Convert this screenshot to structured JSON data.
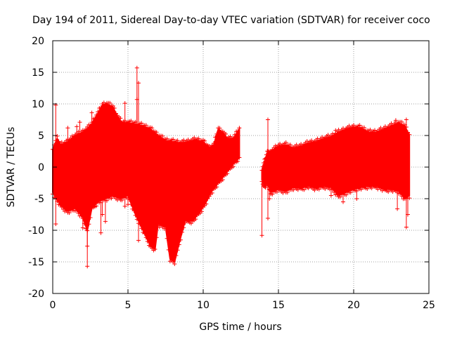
{
  "chart_data": {
    "type": "scatter",
    "title": "Day 194 of 2011, Sidereal Day-to-day VTEC variation (SDTVAR) for receiver coco",
    "xlabel": "GPS time / hours",
    "ylabel": "SDTVAR / TECUs",
    "xlim": [
      0,
      25
    ],
    "ylim": [
      -20,
      20
    ],
    "x_ticks": [
      0,
      5,
      10,
      15,
      20,
      25
    ],
    "y_ticks": [
      -20,
      -15,
      -10,
      -5,
      0,
      5,
      10,
      15,
      20
    ],
    "x_tick_labels": [
      "0",
      "5",
      "10",
      "15",
      "20",
      "25"
    ],
    "y_tick_labels": [
      "-20",
      "-15",
      "-10",
      "-5",
      "0",
      "5",
      "10",
      "15",
      "20"
    ],
    "grid": true,
    "marker": "+",
    "series_color": "#ff0000",
    "segments": [
      {
        "name": "segment-1",
        "x_range": [
          0.0,
          12.4
        ],
        "upper_envelope": [
          [
            0.0,
            2.8
          ],
          [
            0.3,
            4.5
          ],
          [
            0.5,
            3.5
          ],
          [
            1.0,
            4.0
          ],
          [
            1.5,
            5.0
          ],
          [
            2.0,
            5.5
          ],
          [
            2.5,
            6.5
          ],
          [
            3.0,
            8.5
          ],
          [
            3.3,
            9.8
          ],
          [
            3.6,
            10.0
          ],
          [
            4.0,
            9.5
          ],
          [
            4.3,
            8.0
          ],
          [
            4.6,
            7.0
          ],
          [
            5.0,
            7.0
          ],
          [
            5.5,
            6.8
          ],
          [
            6.0,
            6.5
          ],
          [
            6.5,
            6.0
          ],
          [
            7.0,
            5.0
          ],
          [
            7.5,
            4.2
          ],
          [
            8.0,
            4.0
          ],
          [
            8.5,
            3.8
          ],
          [
            9.0,
            4.0
          ],
          [
            9.5,
            4.3
          ],
          [
            10.0,
            4.0
          ],
          [
            10.4,
            3.0
          ],
          [
            10.7,
            3.5
          ],
          [
            11.0,
            6.0
          ],
          [
            11.3,
            5.5
          ],
          [
            11.6,
            4.5
          ],
          [
            12.0,
            4.5
          ],
          [
            12.4,
            6.0
          ]
        ],
        "lower_envelope": [
          [
            0.0,
            -4.0
          ],
          [
            0.5,
            -6.0
          ],
          [
            1.0,
            -7.0
          ],
          [
            1.5,
            -6.5
          ],
          [
            2.0,
            -8.0
          ],
          [
            2.3,
            -10.0
          ],
          [
            2.6,
            -6.5
          ],
          [
            3.0,
            -5.5
          ],
          [
            3.5,
            -5.0
          ],
          [
            4.0,
            -4.5
          ],
          [
            4.5,
            -5.0
          ],
          [
            5.0,
            -4.5
          ],
          [
            5.5,
            -7.5
          ],
          [
            6.0,
            -10.0
          ],
          [
            6.5,
            -12.5
          ],
          [
            6.8,
            -13.0
          ],
          [
            7.0,
            -9.0
          ],
          [
            7.5,
            -9.5
          ],
          [
            7.8,
            -14.5
          ],
          [
            8.1,
            -15.0
          ],
          [
            8.4,
            -12.0
          ],
          [
            8.8,
            -8.5
          ],
          [
            9.3,
            -8.5
          ],
          [
            9.8,
            -7.0
          ],
          [
            10.2,
            -5.5
          ],
          [
            10.5,
            -4.0
          ],
          [
            11.0,
            -2.5
          ],
          [
            11.5,
            -1.0
          ],
          [
            12.0,
            0.5
          ],
          [
            12.4,
            1.5
          ]
        ],
        "outliers": [
          [
            0.2,
            9.8
          ],
          [
            0.2,
            -9.0
          ],
          [
            1.0,
            6.2
          ],
          [
            1.6,
            6.4
          ],
          [
            1.8,
            7.1
          ],
          [
            2.3,
            -15.7
          ],
          [
            2.3,
            -12.5
          ],
          [
            2.6,
            8.6
          ],
          [
            3.2,
            -10.4
          ],
          [
            3.3,
            -7.5
          ],
          [
            3.5,
            -8.6
          ],
          [
            4.8,
            10.1
          ],
          [
            4.8,
            -6.2
          ],
          [
            5.0,
            -5.9
          ],
          [
            5.6,
            15.7
          ],
          [
            5.6,
            10.7
          ],
          [
            5.7,
            13.3
          ],
          [
            5.7,
            -11.6
          ],
          [
            2.0,
            -9.6
          ],
          [
            10.8,
            -2.6
          ]
        ]
      },
      {
        "name": "segment-2",
        "x_range": [
          13.9,
          14.5
        ],
        "upper_envelope": [
          [
            13.9,
            -0.5
          ],
          [
            14.1,
            1.0
          ],
          [
            14.3,
            2.5
          ],
          [
            14.5,
            2.0
          ]
        ],
        "lower_envelope": [
          [
            13.9,
            -2.0
          ],
          [
            14.1,
            -3.0
          ],
          [
            14.3,
            -2.5
          ],
          [
            14.5,
            -4.0
          ]
        ],
        "outliers": [
          [
            13.9,
            -10.8
          ],
          [
            14.0,
            -3.0
          ],
          [
            14.1,
            -2.6
          ],
          [
            14.3,
            -8.1
          ],
          [
            14.3,
            7.5
          ],
          [
            14.4,
            -5.0
          ]
        ]
      },
      {
        "name": "segment-3",
        "x_range": [
          14.5,
          23.7
        ],
        "upper_envelope": [
          [
            14.5,
            2.5
          ],
          [
            15.0,
            3.3
          ],
          [
            15.5,
            3.5
          ],
          [
            16.0,
            3.0
          ],
          [
            16.5,
            3.3
          ],
          [
            17.0,
            3.8
          ],
          [
            17.5,
            4.0
          ],
          [
            18.0,
            4.5
          ],
          [
            18.5,
            4.8
          ],
          [
            19.0,
            5.5
          ],
          [
            19.5,
            6.0
          ],
          [
            20.0,
            6.3
          ],
          [
            20.5,
            6.2
          ],
          [
            21.0,
            5.5
          ],
          [
            21.5,
            5.5
          ],
          [
            22.0,
            6.0
          ],
          [
            22.5,
            6.5
          ],
          [
            23.0,
            7.0
          ],
          [
            23.4,
            6.5
          ],
          [
            23.7,
            5.0
          ]
        ],
        "lower_envelope": [
          [
            14.5,
            -4.0
          ],
          [
            15.0,
            -3.5
          ],
          [
            15.5,
            -3.8
          ],
          [
            16.0,
            -3.2
          ],
          [
            16.5,
            -3.3
          ],
          [
            17.0,
            -3.0
          ],
          [
            17.5,
            -3.3
          ],
          [
            18.0,
            -3.0
          ],
          [
            18.5,
            -3.2
          ],
          [
            19.0,
            -4.5
          ],
          [
            19.5,
            -4.0
          ],
          [
            20.0,
            -3.5
          ],
          [
            20.5,
            -3.2
          ],
          [
            21.0,
            -3.0
          ],
          [
            21.5,
            -3.0
          ],
          [
            22.0,
            -3.5
          ],
          [
            22.5,
            -3.5
          ],
          [
            23.0,
            -3.8
          ],
          [
            23.4,
            -5.0
          ],
          [
            23.7,
            -4.5
          ]
        ],
        "outliers": [
          [
            18.5,
            -4.5
          ],
          [
            18.8,
            5.8
          ],
          [
            19.3,
            -5.5
          ],
          [
            20.2,
            -5.0
          ],
          [
            22.8,
            7.4
          ],
          [
            22.9,
            -6.6
          ],
          [
            23.5,
            -9.5
          ],
          [
            23.5,
            7.5
          ],
          [
            23.6,
            -7.5
          ]
        ]
      }
    ]
  }
}
